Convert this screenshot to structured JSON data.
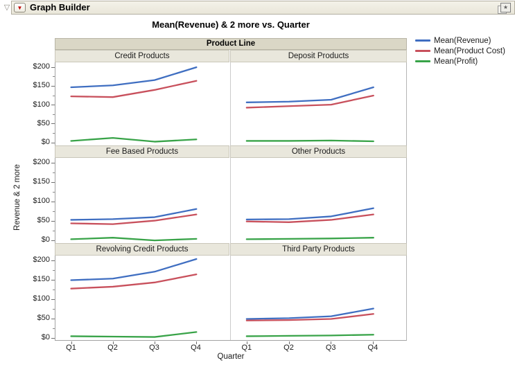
{
  "window": {
    "title": "Graph Builder"
  },
  "icons": {
    "disclosure": "▽",
    "red_triangle_menu": "▼",
    "layered_star": "★"
  },
  "legend": {
    "position": "top-right",
    "items": [
      {
        "label": "Mean(Revenue)",
        "color": "#3F6EC1"
      },
      {
        "label": "Mean(Product Cost)",
        "color": "#C8505C"
      },
      {
        "label": "Mean(Profit)",
        "color": "#38A348"
      }
    ]
  },
  "chart_data": {
    "type": "line",
    "title": "Mean(Revenue) & 2 more vs. Quarter",
    "facet": {
      "group_label": "Product Line",
      "columns": 2,
      "rows": 3
    },
    "x": [
      "Q1",
      "Q2",
      "Q3",
      "Q4"
    ],
    "xlabel": "Quarter",
    "ylabel": "Revenue & 2 more",
    "y_ticks": [
      0,
      50,
      100,
      150,
      200
    ],
    "y_tick_labels": [
      "$0",
      "$50",
      "$100",
      "$150",
      "$200"
    ],
    "y_minor_ticks": [
      25,
      75,
      125,
      175
    ],
    "ylim": [
      -8,
      212
    ],
    "grid": false,
    "series_names": [
      "Mean(Revenue)",
      "Mean(Product Cost)",
      "Mean(Profit)"
    ],
    "panels": [
      {
        "title": "Credit Products",
        "series": [
          {
            "name": "Mean(Revenue)",
            "values": [
              146,
              151,
              165,
              199
            ]
          },
          {
            "name": "Mean(Product Cost)",
            "values": [
              122,
              120,
              139,
              163
            ]
          },
          {
            "name": "Mean(Profit)",
            "values": [
              4,
              12,
              2,
              8
            ]
          }
        ]
      },
      {
        "title": "Deposit Products",
        "series": [
          {
            "name": "Mean(Revenue)",
            "values": [
              106,
              108,
              113,
              146
            ]
          },
          {
            "name": "Mean(Product Cost)",
            "values": [
              92,
              96,
              100,
              124
            ]
          },
          {
            "name": "Mean(Profit)",
            "values": [
              4,
              4,
              5,
              3
            ]
          }
        ]
      },
      {
        "title": "Fee Based Products",
        "series": [
          {
            "name": "Mean(Revenue)",
            "values": [
              52,
              54,
              59,
              80
            ]
          },
          {
            "name": "Mean(Product Cost)",
            "values": [
              43,
              41,
              50,
              66
            ]
          },
          {
            "name": "Mean(Profit)",
            "values": [
              2,
              6,
              -1,
              3
            ]
          }
        ]
      },
      {
        "title": "Other Products",
        "series": [
          {
            "name": "Mean(Revenue)",
            "values": [
              53,
              54,
              61,
              82
            ]
          },
          {
            "name": "Mean(Product Cost)",
            "values": [
              48,
              46,
              52,
              66
            ]
          },
          {
            "name": "Mean(Profit)",
            "values": [
              2,
              3,
              4,
              6
            ]
          }
        ]
      },
      {
        "title": "Revolving Credit Products",
        "series": [
          {
            "name": "Mean(Revenue)",
            "values": [
              148,
              152,
              170,
              203
            ]
          },
          {
            "name": "Mean(Product Cost)",
            "values": [
              126,
              131,
              142,
              163
            ]
          },
          {
            "name": "Mean(Profit)",
            "values": [
              2,
              1,
              0,
              13
            ]
          }
        ]
      },
      {
        "title": "Third Party Products",
        "series": [
          {
            "name": "Mean(Revenue)",
            "values": [
              47,
              49,
              54,
              74
            ]
          },
          {
            "name": "Mean(Product Cost)",
            "values": [
              43,
              44,
              47,
              60
            ]
          },
          {
            "name": "Mean(Profit)",
            "values": [
              2,
              3,
              4,
              6
            ]
          }
        ]
      }
    ]
  }
}
